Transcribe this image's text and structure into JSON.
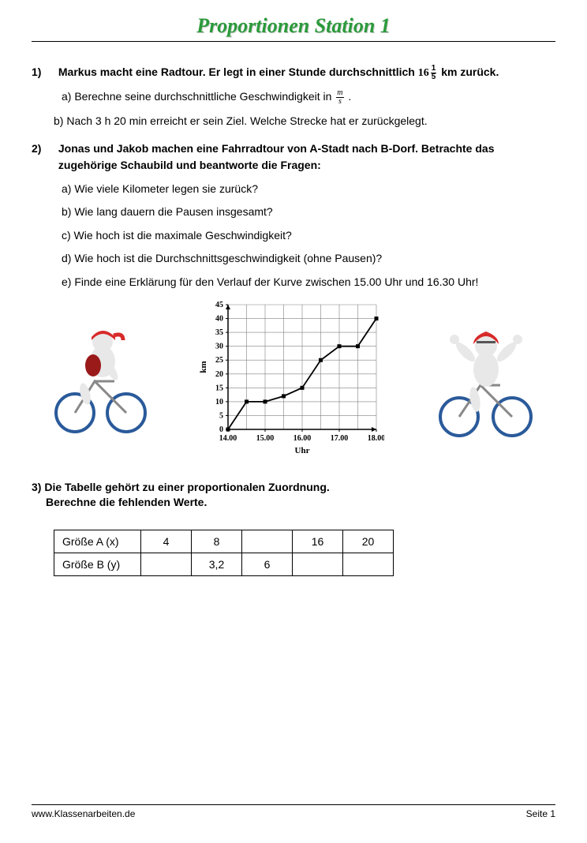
{
  "title": "Proportionen  Station 1",
  "q1": {
    "num": "1)",
    "main_a": "Markus macht eine Radtour. Er legt in einer Stunde durchschnittlich ",
    "main_b": " km zurück.",
    "mixed_whole": "16",
    "mixed_num": "1",
    "mixed_den": "5",
    "a_pre": "a) Berechne seine durchschnittliche Geschwindigkeit in ",
    "a_post": " .",
    "unit_num": "m",
    "unit_den": "s",
    "b": "b) Nach 3 h 20 min erreicht er sein Ziel. Welche Strecke hat er zurückgelegt."
  },
  "q2": {
    "num": "2)",
    "main": "Jonas und Jakob machen eine Fahrradtour von A-Stadt nach B-Dorf. Betrachte das zugehörige Schaubild und beantworte die Fragen:",
    "a": "a) Wie viele Kilometer legen sie zurück?",
    "b": "b) Wie lang dauern die Pausen insgesamt?",
    "c": "c) Wie hoch ist die maximale Geschwindigkeit?",
    "d": "d) Wie hoch ist die Durchschnittsgeschwindigkeit (ohne Pausen)?",
    "e": "e) Finde eine Erklärung für den Verlauf der Kurve zwischen 15.00 Uhr und 16.30 Uhr!"
  },
  "chart": {
    "type": "line",
    "xlabel": "Uhr",
    "ylabel": "km",
    "xlim": [
      14.0,
      18.0
    ],
    "ylim": [
      0,
      45
    ],
    "xticks": [
      "14.00",
      "15.00",
      "16.00",
      "17.00",
      "18.00"
    ],
    "yticks": [
      0,
      5,
      10,
      15,
      20,
      25,
      30,
      35,
      40,
      45
    ],
    "grid_color": "#808080",
    "axis_color": "#000000",
    "line_color": "#000000",
    "points": [
      [
        14.0,
        0
      ],
      [
        14.5,
        10
      ],
      [
        15.0,
        10
      ],
      [
        15.5,
        12
      ],
      [
        16.0,
        15
      ],
      [
        16.5,
        25
      ],
      [
        17.0,
        30
      ],
      [
        17.5,
        30
      ],
      [
        18.0,
        40
      ]
    ],
    "label_fontsize": 11,
    "tick_fontsize": 10
  },
  "q3": {
    "line1": "3) Die Tabelle gehört zu einer proportionalen Zuordnung.",
    "line2": "Berechne die fehlenden Werte.",
    "table": {
      "row1_header": "Größe A (x)",
      "row1_cells": [
        "4",
        "8",
        "",
        "16",
        "20"
      ],
      "row2_header": "Größe B (y)",
      "row2_cells": [
        "",
        "3,2",
        "6",
        "",
        ""
      ]
    }
  },
  "footer": {
    "left": "www.Klassenarbeiten.de",
    "right": "Seite 1"
  },
  "colors": {
    "title_green": "#2a9a3a",
    "red": "#d82a2a",
    "darkred": "#9a1a1a",
    "grey": "#e0e0e0",
    "darkgrey": "#888888",
    "blue": "#2a5a9a"
  }
}
